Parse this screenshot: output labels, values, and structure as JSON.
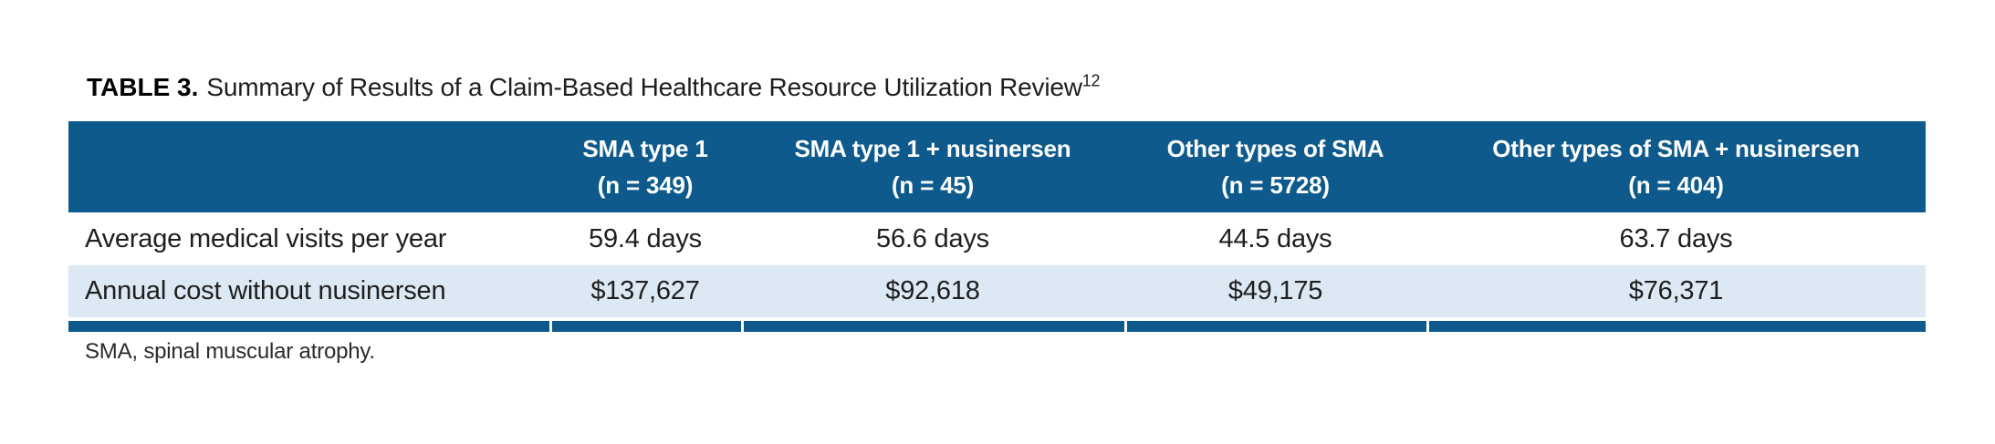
{
  "title": {
    "label": "TABLE 3.",
    "text": "Summary of Results of a Claim-Based Healthcare Resource Utilization Review",
    "citation_superscript": "12"
  },
  "table": {
    "columns": [
      {
        "name": "SMA type 1",
        "n": "(n = 349)"
      },
      {
        "name": "SMA type 1 + nusinersen",
        "n": "(n = 45)"
      },
      {
        "name": "Other types of SMA",
        "n": "(n = 5728)"
      },
      {
        "name": "Other types of SMA + nusinersen",
        "n": "(n = 404)"
      }
    ],
    "rows": [
      {
        "label": "Average medical visits per year",
        "values": [
          "59.4 days",
          "56.6 days",
          "44.5 days",
          "63.7 days"
        ]
      },
      {
        "label": "Annual cost without nusinersen",
        "values": [
          "$137,627",
          "$92,618",
          "$49,175",
          "$76,371"
        ]
      }
    ]
  },
  "footnote": "SMA, spinal muscular atrophy.",
  "colors": {
    "header_bg": "#0e5a8c",
    "alt_row_bg": "#dce9f4",
    "bottom_bar": "#0e5a8c",
    "header_text": "#ffffff",
    "body_text": "#1e1e1e"
  }
}
